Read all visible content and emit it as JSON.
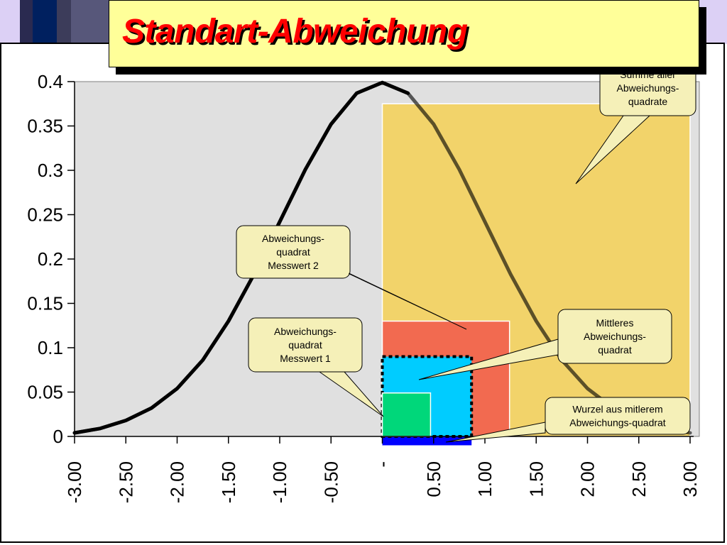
{
  "title": "Standart-Abweichung",
  "colors": {
    "plot_bg": "#e0e0e0",
    "sum_square": "#f2d36a",
    "square_2": "#f26a50",
    "mean_square": "#00ccff",
    "square_1": "#00d77a",
    "root_bar": "#0000ff",
    "curve": "#000000",
    "callout_fill": "#f5f0b8",
    "title_bg": "#ffff99",
    "title_text": "#ff0000"
  },
  "chart_data": {
    "type": "line",
    "title": "",
    "xlabel": "",
    "ylabel": "",
    "xlim": [
      -3,
      3
    ],
    "ylim": [
      0,
      0.4
    ],
    "x_tick_labels": [
      "-3.00",
      "-2.50",
      "-2.00",
      "-1.50",
      "-1.00",
      "-0.50",
      "-",
      "0.50",
      "1.00",
      "1.50",
      "2.00",
      "2.50",
      "3.00"
    ],
    "x_tick_values": [
      -3,
      -2.5,
      -2,
      -1.5,
      -1,
      -0.5,
      0,
      0.5,
      1,
      1.5,
      2,
      2.5,
      3
    ],
    "y_tick_labels": [
      "0",
      "0.05",
      "0.1",
      "0.15",
      "0.2",
      "0.25",
      "0.3",
      "0.35",
      "0.4"
    ],
    "y_tick_values": [
      0,
      0.05,
      0.1,
      0.15,
      0.2,
      0.25,
      0.3,
      0.35,
      0.4
    ],
    "series": [
      {
        "x": [
          -3.0,
          -2.75,
          -2.5,
          -2.25,
          -2.0,
          -1.75,
          -1.5,
          -1.25,
          -1.0,
          -0.75,
          -0.5,
          -0.25,
          0.0,
          0.25,
          0.5,
          0.75,
          1.0,
          1.25,
          1.5,
          1.75,
          2.0,
          2.25,
          2.5,
          2.75,
          3.0
        ],
        "y": [
          0.004,
          0.009,
          0.018,
          0.032,
          0.054,
          0.086,
          0.13,
          0.183,
          0.242,
          0.301,
          0.352,
          0.387,
          0.399,
          0.387,
          0.352,
          0.301,
          0.242,
          0.183,
          0.13,
          0.086,
          0.054,
          0.032,
          0.018,
          0.009,
          0.004
        ]
      }
    ],
    "squares": [
      {
        "id": "sum",
        "x0": 0,
        "x1": 3.0,
        "y0": 0,
        "y1": 0.375
      },
      {
        "id": "sq2",
        "x0": 0,
        "x1": 1.24,
        "y0": 0,
        "y1": 0.13
      },
      {
        "id": "mean",
        "x0": 0,
        "x1": 0.87,
        "y0": 0,
        "y1": 0.09
      },
      {
        "id": "sq1",
        "x0": 0,
        "x1": 0.47,
        "y0": 0,
        "y1": 0.049
      },
      {
        "id": "root",
        "x0": 0,
        "x1": 0.87,
        "y0": -0.01,
        "y1": 0
      }
    ],
    "annotations": [
      {
        "id": "sum",
        "lines": [
          "Summe aller",
          "Abweichungs-",
          "quadrate"
        ]
      },
      {
        "id": "sq2",
        "lines": [
          "Abweichungs-",
          "quadrat",
          "Messwert 2"
        ]
      },
      {
        "id": "sq1",
        "lines": [
          "Abweichungs-",
          "quadrat",
          "Messwert 1"
        ]
      },
      {
        "id": "mean",
        "lines": [
          "Mittleres",
          "Abweichungs-",
          "quadrat"
        ]
      },
      {
        "id": "root",
        "lines": [
          "Wurzel aus mitlerem",
          "Abweichungs-quadrat"
        ]
      }
    ]
  }
}
